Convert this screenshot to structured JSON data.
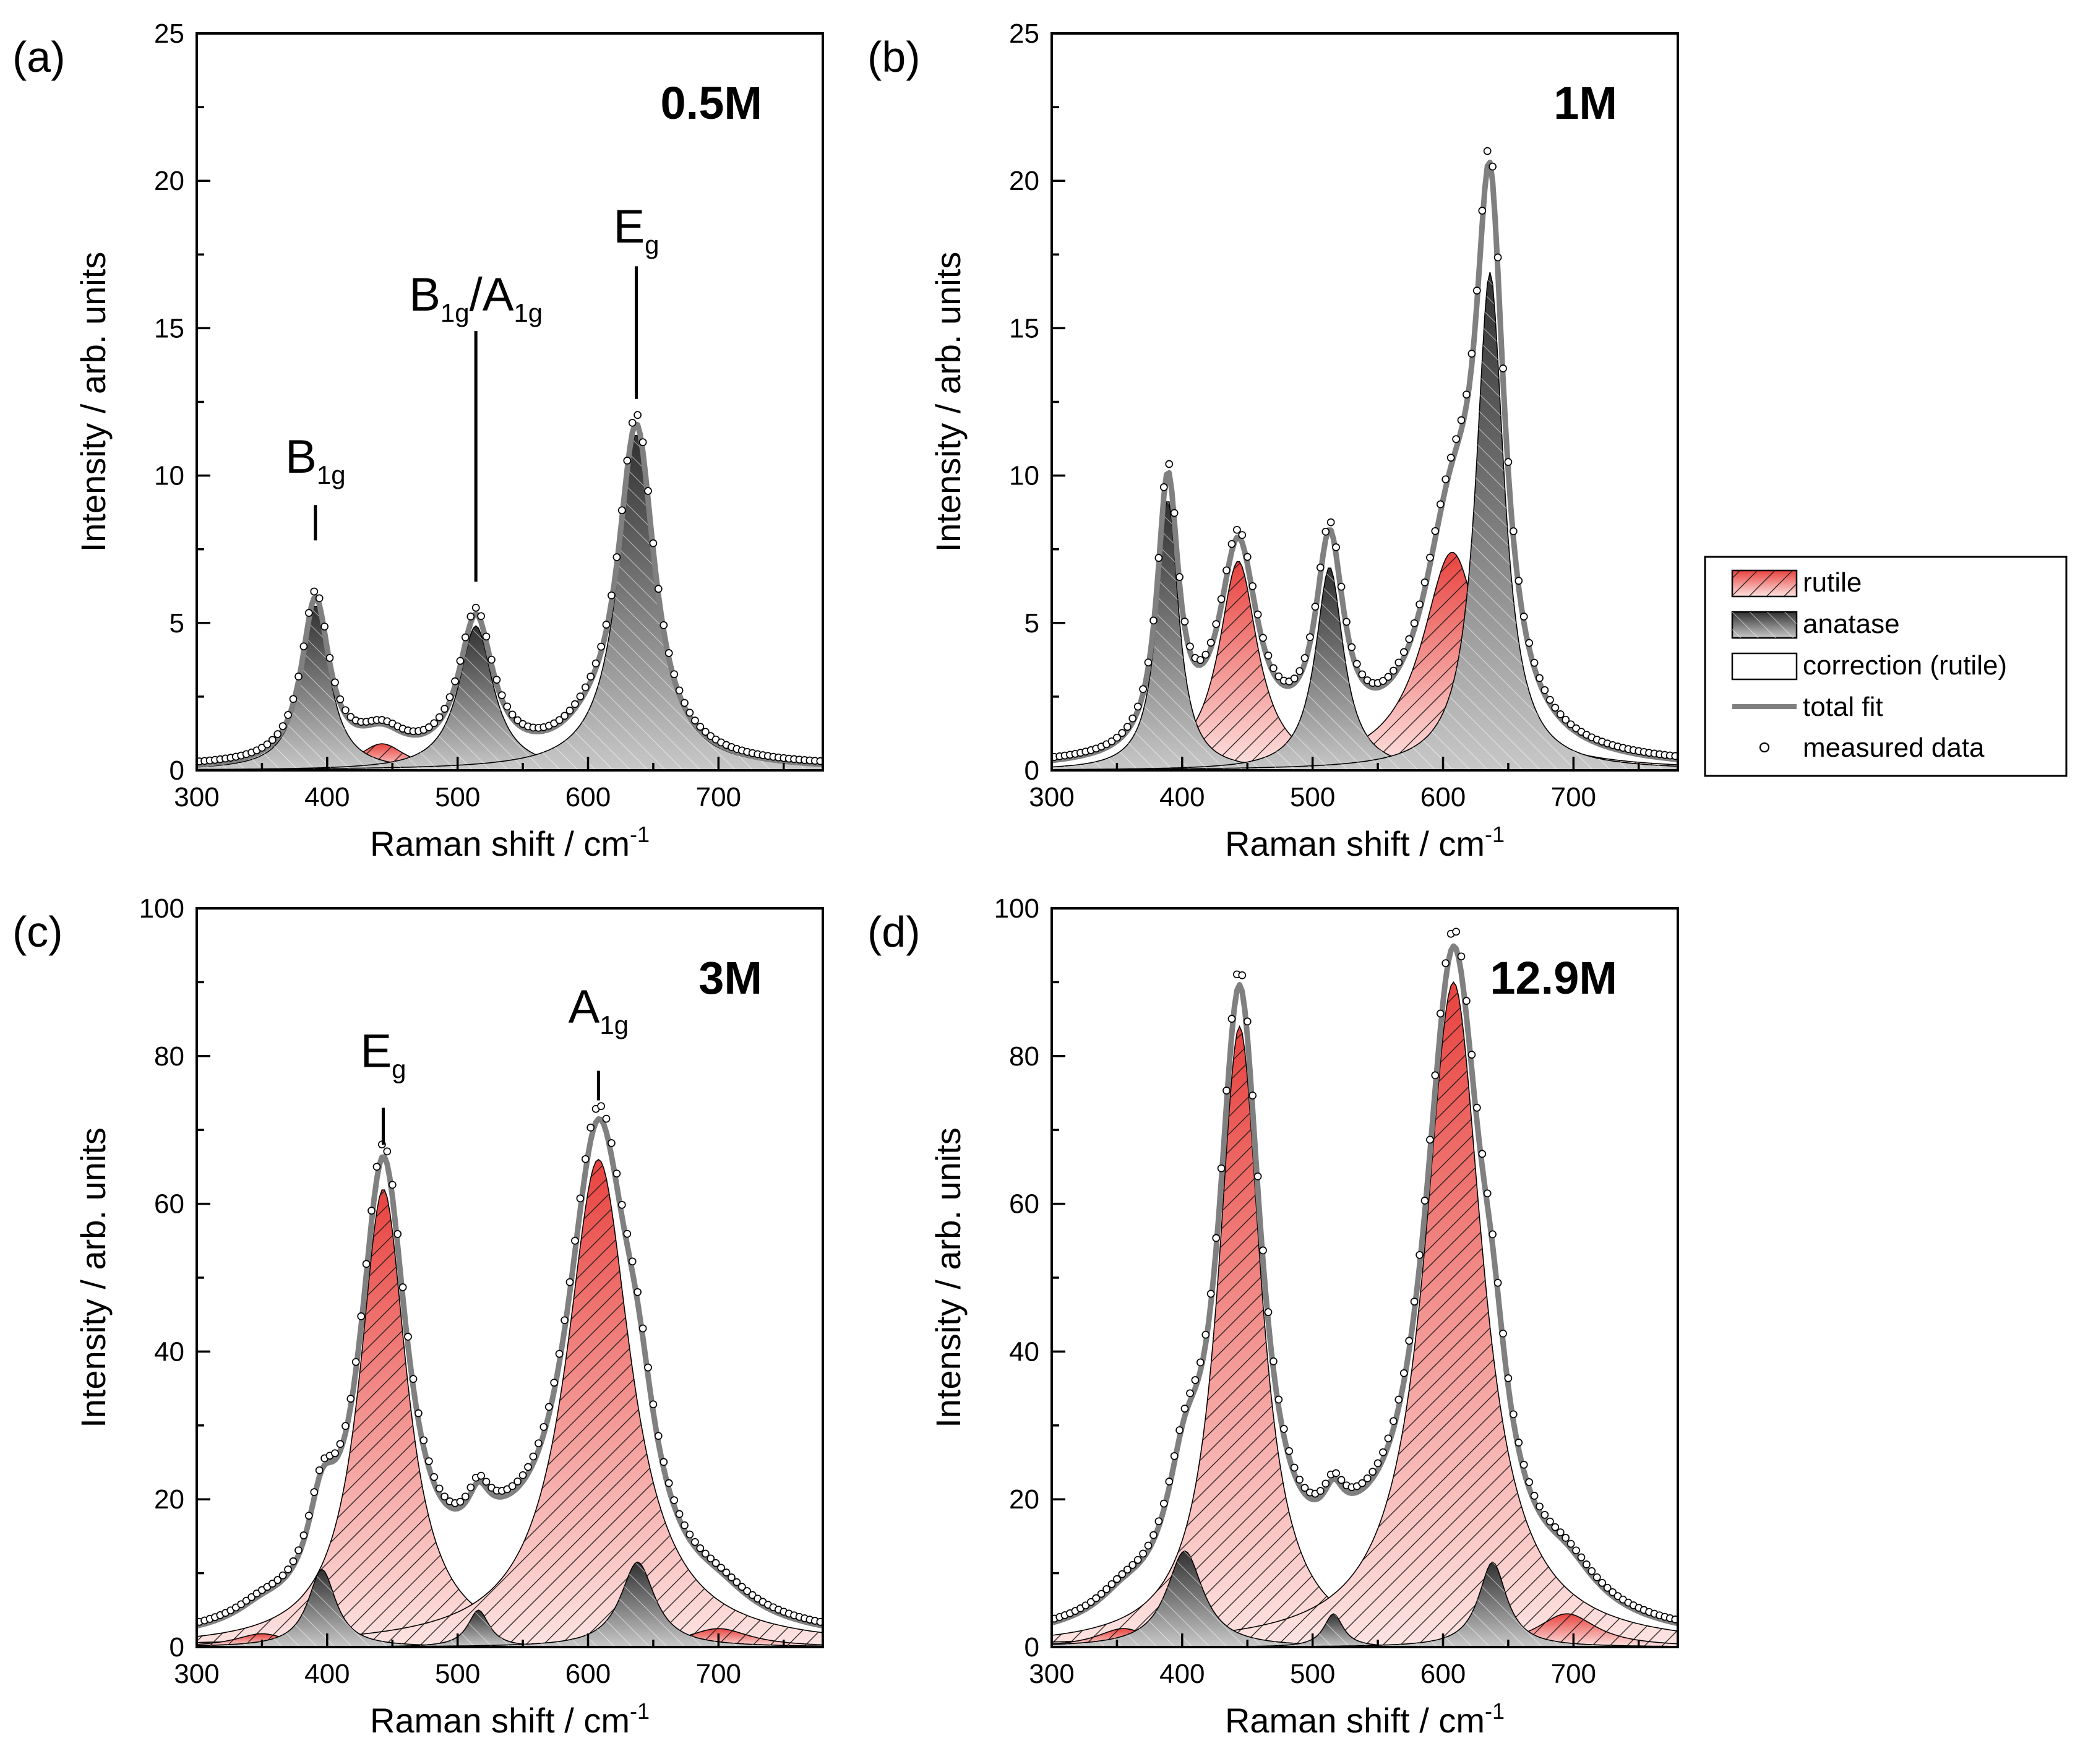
{
  "chart_data": [
    {
      "id": "a",
      "type": "line",
      "panel_label": "(a)",
      "concentration": "0.5M",
      "xlabel": "Raman shift / cm",
      "xlabel_sup": "-1",
      "ylabel": "Intensity / arb. units",
      "xlim": [
        300,
        780
      ],
      "ylim": [
        0,
        25
      ],
      "xticks": [
        300,
        400,
        500,
        600,
        700
      ],
      "yticks": [
        0,
        5,
        10,
        15,
        20,
        25
      ],
      "anatase_peaks": [
        {
          "center": 391,
          "height": 5.6,
          "width": 13
        },
        {
          "center": 514,
          "height": 4.9,
          "width": 16
        },
        {
          "center": 637,
          "height": 11.4,
          "width": 17
        }
      ],
      "rutile_peaks": [
        {
          "center": 442,
          "height": 0.9,
          "width": 22
        },
        {
          "center": 603,
          "height": 0.65,
          "width": 28
        }
      ],
      "correction_peaks": [],
      "annotations": [
        {
          "main": "B",
          "sub": "1g",
          "x": 391,
          "y": 10.1,
          "line_y": [
            7.8,
            9.0
          ]
        },
        {
          "main": "B",
          "sub": "1g",
          "mid": "/A",
          "sub2": "1g",
          "x": 514,
          "y": 15.6,
          "line_y": [
            6.4,
            14.9
          ]
        },
        {
          "main": "E",
          "sub": "g",
          "x": 637,
          "y": 17.9,
          "line_y": [
            12.6,
            17.1
          ]
        }
      ]
    },
    {
      "id": "b",
      "type": "line",
      "panel_label": "(b)",
      "concentration": "1M",
      "xlabel": "Raman shift / cm",
      "xlabel_sup": "-1",
      "ylabel": "Intensity / arb. units",
      "xlim": [
        300,
        780
      ],
      "ylim": [
        0,
        25
      ],
      "xticks": [
        300,
        400,
        500,
        600,
        700
      ],
      "yticks": [
        0,
        5,
        10,
        15,
        20,
        25
      ],
      "anatase_peaks": [
        {
          "center": 389,
          "height": 9.2,
          "width": 10
        },
        {
          "center": 513,
          "height": 6.9,
          "width": 13
        },
        {
          "center": 636,
          "height": 16.9,
          "width": 13
        }
      ],
      "rutile_peaks": [
        {
          "center": 443,
          "height": 7.1,
          "width": 18
        },
        {
          "center": 607,
          "height": 7.4,
          "width": 28
        }
      ],
      "correction_peaks": [],
      "annotations": []
    },
    {
      "id": "c",
      "type": "line",
      "panel_label": "(c)",
      "concentration": "3M",
      "xlabel": "Raman shift / cm",
      "xlabel_sup": "-1",
      "ylabel": "Intensity / arb. units",
      "xlim": [
        300,
        780
      ],
      "ylim": [
        0,
        100
      ],
      "xticks": [
        300,
        400,
        500,
        600,
        700
      ],
      "yticks": [
        0,
        20,
        40,
        60,
        80,
        100
      ],
      "anatase_peaks": [
        {
          "center": 396,
          "height": 10.5,
          "width": 13
        },
        {
          "center": 516,
          "height": 5.0,
          "width": 10
        },
        {
          "center": 638,
          "height": 11.5,
          "width": 16
        }
      ],
      "rutile_peaks": [
        {
          "center": 443,
          "height": 62,
          "width": 22
        },
        {
          "center": 608,
          "height": 66,
          "width": 30
        },
        {
          "center": 350,
          "height": 1.8,
          "width": 25
        },
        {
          "center": 700,
          "height": 2.5,
          "width": 30
        }
      ],
      "correction_peaks": [
        {
          "center": 530,
          "height": 6.0,
          "width": 45
        }
      ],
      "annotations": [
        {
          "main": "E",
          "sub": "g",
          "x": 443,
          "y": 78.5,
          "line_y": [
            68,
            73
          ]
        },
        {
          "main": "A",
          "sub": "1g",
          "x": 608,
          "y": 84.5,
          "line_y": [
            74,
            78
          ]
        }
      ]
    },
    {
      "id": "d",
      "type": "line",
      "panel_label": "(d)",
      "concentration": "12.9M",
      "xlabel": "Raman shift / cm",
      "xlabel_sup": "-1",
      "ylabel": "Intensity / arb. units",
      "xlim": [
        300,
        780
      ],
      "ylim": [
        0,
        100
      ],
      "xticks": [
        300,
        400,
        500,
        600,
        700
      ],
      "yticks": [
        0,
        20,
        40,
        60,
        80,
        100
      ],
      "anatase_peaks": [
        {
          "center": 402,
          "height": 13.0,
          "width": 17
        },
        {
          "center": 516,
          "height": 4.5,
          "width": 9
        },
        {
          "center": 638,
          "height": 11.5,
          "width": 13
        }
      ],
      "rutile_peaks": [
        {
          "center": 444,
          "height": 84,
          "width": 20
        },
        {
          "center": 608,
          "height": 90,
          "width": 27
        },
        {
          "center": 355,
          "height": 2.5,
          "width": 25
        },
        {
          "center": 695,
          "height": 4.5,
          "width": 28
        }
      ],
      "correction_peaks": [
        {
          "center": 530,
          "height": 5.0,
          "width": 45
        }
      ],
      "annotations": []
    }
  ],
  "legend": {
    "placement": "right-middle",
    "entries": [
      {
        "label": "rutile",
        "kind": "rutile"
      },
      {
        "label": "anatase",
        "kind": "anatase"
      },
      {
        "label": "correction (rutile)",
        "kind": "correction"
      },
      {
        "label": "total fit",
        "kind": "fit"
      },
      {
        "label": "measured data",
        "kind": "data"
      }
    ]
  },
  "colors": {
    "rutile_dark": "#e8433f",
    "rutile_light": "#fde4e2",
    "anatase_dark": "#303030",
    "anatase_light": "#c8c8c8",
    "fit": "#808080",
    "hatch": "#1a1a1a",
    "axis": "#000000"
  }
}
